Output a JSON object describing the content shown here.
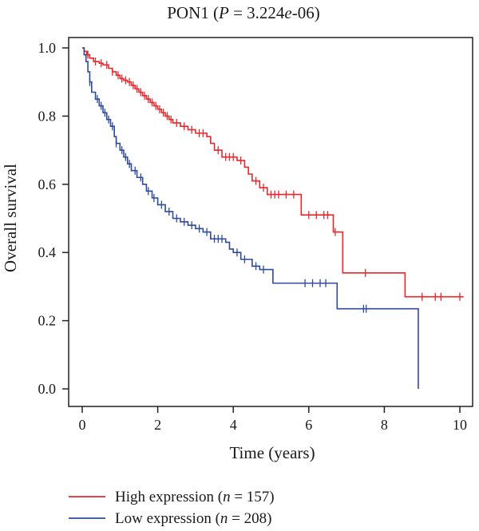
{
  "chart_data": {
    "type": "line",
    "title": {
      "prefix": "PON1 (",
      "p_symbol": "P",
      "mid": " = 3.224",
      "e_symbol": "e",
      "suffix": "-06)"
    },
    "xlabel": "Time (years)",
    "ylabel": "Overall survival",
    "xlim": [
      0,
      10.2
    ],
    "ylim": [
      0,
      1.02
    ],
    "xticks": [
      0,
      2,
      4,
      6,
      8,
      10
    ],
    "yticks": [
      "0.0",
      "0.2",
      "0.4",
      "0.6",
      "0.8",
      "1.0"
    ],
    "legend_position": "bottom-left",
    "series": [
      {
        "name": "High expression",
        "legend": {
          "prefix": "High expression (",
          "n_symbol": "n",
          "suffix": " = 157)"
        },
        "color": "#e8262b",
        "steps": [
          [
            0,
            1.0
          ],
          [
            0.05,
            0.99
          ],
          [
            0.12,
            0.98
          ],
          [
            0.2,
            0.97
          ],
          [
            0.3,
            0.96
          ],
          [
            0.45,
            0.955
          ],
          [
            0.55,
            0.95
          ],
          [
            0.7,
            0.94
          ],
          [
            0.8,
            0.93
          ],
          [
            0.9,
            0.92
          ],
          [
            1.0,
            0.91
          ],
          [
            1.1,
            0.905
          ],
          [
            1.2,
            0.9
          ],
          [
            1.3,
            0.89
          ],
          [
            1.4,
            0.88
          ],
          [
            1.5,
            0.87
          ],
          [
            1.6,
            0.86
          ],
          [
            1.7,
            0.85
          ],
          [
            1.8,
            0.84
          ],
          [
            1.9,
            0.83
          ],
          [
            2.0,
            0.82
          ],
          [
            2.1,
            0.81
          ],
          [
            2.2,
            0.8
          ],
          [
            2.3,
            0.79
          ],
          [
            2.4,
            0.78
          ],
          [
            2.6,
            0.77
          ],
          [
            2.8,
            0.76
          ],
          [
            3.0,
            0.75
          ],
          [
            3.3,
            0.74
          ],
          [
            3.4,
            0.72
          ],
          [
            3.5,
            0.7
          ],
          [
            3.7,
            0.68
          ],
          [
            4.1,
            0.67
          ],
          [
            4.3,
            0.65
          ],
          [
            4.4,
            0.63
          ],
          [
            4.5,
            0.61
          ],
          [
            4.7,
            0.59
          ],
          [
            4.9,
            0.57
          ],
          [
            5.8,
            0.51
          ],
          [
            6.65,
            0.46
          ],
          [
            6.9,
            0.34
          ],
          [
            8.55,
            0.27
          ],
          [
            10.1,
            0.27
          ]
        ],
        "censored": [
          0.15,
          0.35,
          0.5,
          0.65,
          0.8,
          0.95,
          1.05,
          1.15,
          1.25,
          1.35,
          1.45,
          1.55,
          1.65,
          1.75,
          1.85,
          1.95,
          2.05,
          2.15,
          2.25,
          2.35,
          2.5,
          2.7,
          2.9,
          3.1,
          3.2,
          3.6,
          3.8,
          3.9,
          4.0,
          4.2,
          4.6,
          4.8,
          5.0,
          5.1,
          5.2,
          5.4,
          5.6,
          6.0,
          6.2,
          6.4,
          6.5,
          6.7,
          7.5,
          9.0,
          9.35,
          9.5,
          10.0
        ]
      },
      {
        "name": "Low expression",
        "legend": {
          "prefix": "Low expression (",
          "n_symbol": "n",
          "suffix": " = 208)"
        },
        "color": "#2e4a9e",
        "steps": [
          [
            0,
            1.0
          ],
          [
            0.05,
            0.98
          ],
          [
            0.1,
            0.96
          ],
          [
            0.15,
            0.93
          ],
          [
            0.2,
            0.9
          ],
          [
            0.25,
            0.87
          ],
          [
            0.35,
            0.85
          ],
          [
            0.45,
            0.83
          ],
          [
            0.55,
            0.81
          ],
          [
            0.65,
            0.79
          ],
          [
            0.75,
            0.77
          ],
          [
            0.85,
            0.74
          ],
          [
            0.9,
            0.72
          ],
          [
            1.0,
            0.7
          ],
          [
            1.1,
            0.68
          ],
          [
            1.2,
            0.66
          ],
          [
            1.3,
            0.64
          ],
          [
            1.45,
            0.62
          ],
          [
            1.6,
            0.6
          ],
          [
            1.7,
            0.58
          ],
          [
            1.85,
            0.56
          ],
          [
            2.0,
            0.54
          ],
          [
            2.2,
            0.52
          ],
          [
            2.4,
            0.5
          ],
          [
            2.6,
            0.49
          ],
          [
            2.8,
            0.48
          ],
          [
            3.0,
            0.47
          ],
          [
            3.2,
            0.46
          ],
          [
            3.4,
            0.44
          ],
          [
            3.8,
            0.43
          ],
          [
            3.9,
            0.41
          ],
          [
            4.0,
            0.4
          ],
          [
            4.2,
            0.38
          ],
          [
            4.5,
            0.36
          ],
          [
            4.7,
            0.35
          ],
          [
            5.05,
            0.31
          ],
          [
            6.75,
            0.235
          ],
          [
            8.9,
            0.0
          ]
        ],
        "censored": [
          0.2,
          0.4,
          0.5,
          0.6,
          0.7,
          0.8,
          0.9,
          1.05,
          1.15,
          1.25,
          1.4,
          1.55,
          1.75,
          1.9,
          2.1,
          2.3,
          2.5,
          2.7,
          2.9,
          3.1,
          3.3,
          3.5,
          3.6,
          3.7,
          4.1,
          4.3,
          4.6,
          4.8,
          5.9,
          6.1,
          6.3,
          6.45,
          7.45,
          7.52
        ]
      }
    ]
  }
}
